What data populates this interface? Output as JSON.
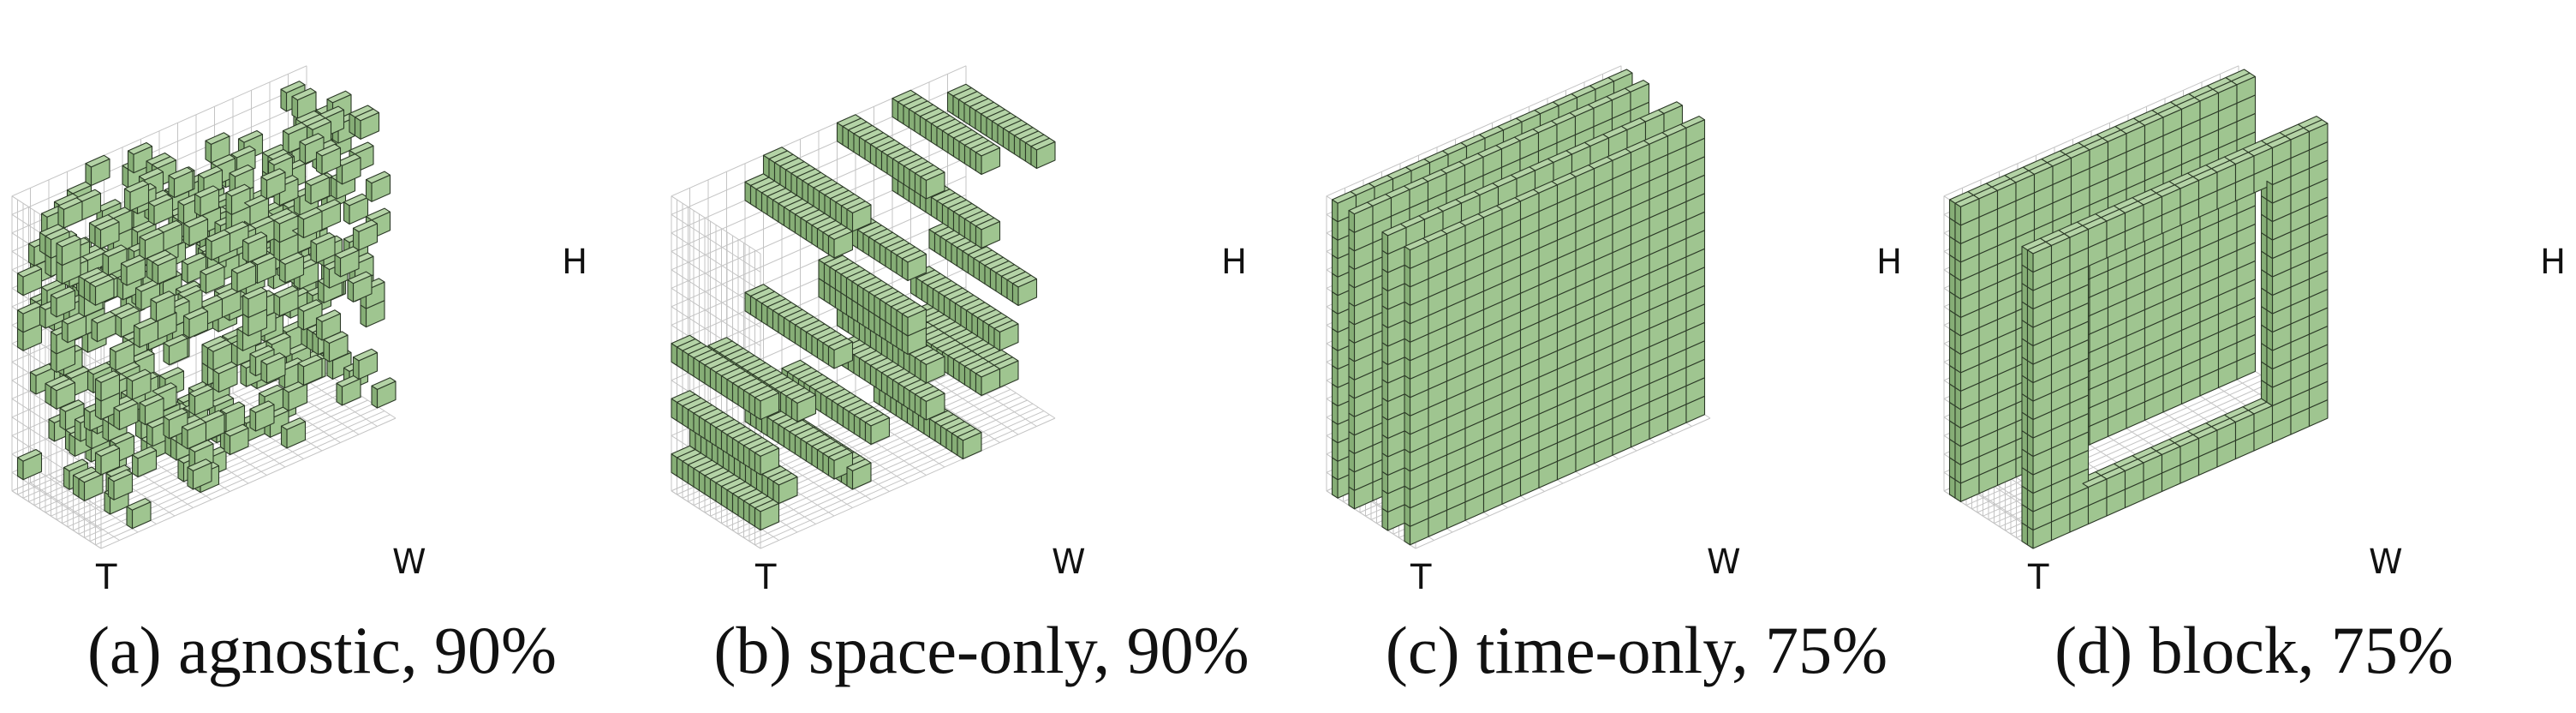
{
  "figure": {
    "colors": {
      "cube_face": "#9fc590",
      "cube_top": "#b4d3a6",
      "cube_side": "#86ae76",
      "cube_edge": "#2c3a27",
      "grid": "#c4c4c4"
    },
    "panels": [
      {
        "caption": "(a) agnostic, 90%",
        "mask": "agnostic",
        "axis_labels": {
          "t": "T",
          "w": "W",
          "h": "H"
        }
      },
      {
        "caption": "(b) space-only, 90%",
        "mask": "space-only",
        "axis_labels": {
          "t": "T",
          "w": "W",
          "h": "H"
        }
      },
      {
        "caption": "(c) time-only, 75%",
        "mask": "time-only",
        "axis_labels": {
          "t": "T",
          "w": "W",
          "h": "H"
        }
      },
      {
        "caption": "(d) block, 75%",
        "mask": "block",
        "axis_labels": {
          "t": "T",
          "w": "W",
          "h": "H"
        }
      }
    ]
  }
}
